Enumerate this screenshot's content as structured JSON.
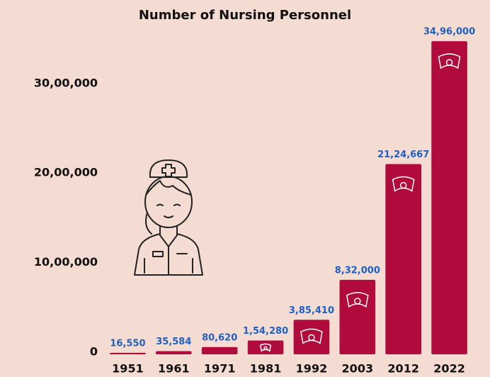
{
  "chart_data": {
    "type": "bar",
    "title": "Number of Nursing Personnel",
    "categories": [
      "1951",
      "1961",
      "1971",
      "1981",
      "1992",
      "2003",
      "2012",
      "2022"
    ],
    "values": [
      16550,
      35584,
      80620,
      154280,
      385410,
      832000,
      2124667,
      3496000
    ],
    "value_labels": [
      "16,550",
      "35,584",
      "80,620",
      "1,54,280",
      "3,85,410",
      "8,32,000",
      "21,24,667",
      "34,96,000"
    ],
    "color": "#b10a3c",
    "label_color": "#1f5fbf",
    "ylim": [
      0,
      3600000
    ],
    "yticks": [
      0,
      {
        "value": 1000000,
        "label": "10,00,000"
      },
      {
        "value": 2000000,
        "label": "20,00,000"
      },
      {
        "value": 3000000,
        "label": "30,00,000"
      }
    ],
    "grid": false
  }
}
